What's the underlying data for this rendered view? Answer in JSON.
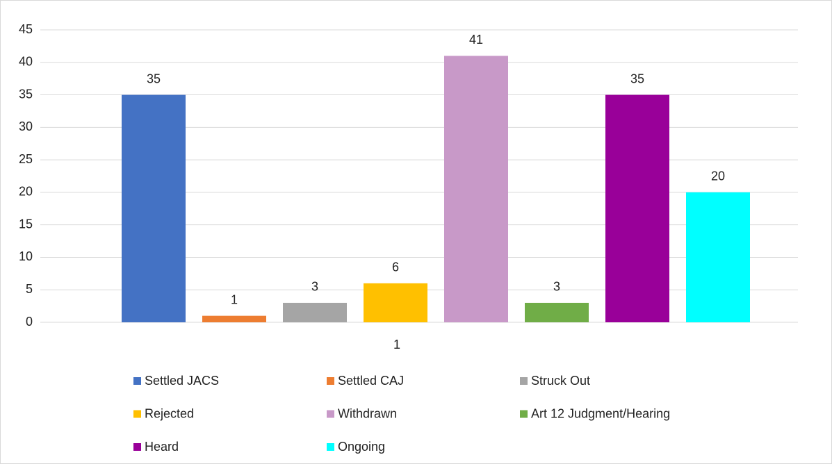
{
  "chart_data": {
    "type": "bar",
    "categories": [
      "1"
    ],
    "series": [
      {
        "name": "Settled JACS",
        "color": "#4472c4",
        "values": [
          35
        ]
      },
      {
        "name": "Settled CAJ",
        "color": "#ed7d31",
        "values": [
          1
        ]
      },
      {
        "name": "Struck Out",
        "color": "#a5a5a5",
        "values": [
          3
        ]
      },
      {
        "name": "Rejected",
        "color": "#ffc000",
        "values": [
          6
        ]
      },
      {
        "name": "Withdrawn",
        "color": "#c899c8",
        "values": [
          41
        ]
      },
      {
        "name": "Art 12 Judgment/Hearing",
        "color": "#70ad47",
        "values": [
          3
        ]
      },
      {
        "name": "Heard",
        "color": "#990099",
        "values": [
          35
        ]
      },
      {
        "name": "Ongoing",
        "color": "#00ffff",
        "values": [
          20
        ]
      }
    ],
    "ylim": [
      0,
      45
    ],
    "yticks": [
      0,
      5,
      10,
      15,
      20,
      25,
      30,
      35,
      40,
      45
    ],
    "grid": true,
    "legend": "bottom"
  }
}
